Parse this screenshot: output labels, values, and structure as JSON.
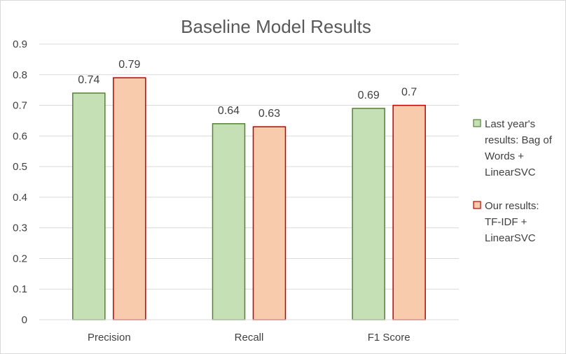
{
  "chart_data": {
    "type": "bar",
    "title": "Baseline Model Results",
    "xlabel": "",
    "ylabel": "",
    "categories": [
      "Precision",
      "Recall",
      "F1 Score"
    ],
    "series": [
      {
        "name_lines": [
          "Last year's",
          "results: Bag of",
          "Words +",
          "LinearSVC"
        ],
        "values": [
          0.74,
          0.64,
          0.69
        ],
        "fill": "#c5e0b4",
        "stroke": "#548235"
      },
      {
        "name_lines": [
          "Our results:",
          "TF-IDF +",
          "LinearSVC"
        ],
        "values": [
          0.79,
          0.63,
          0.7
        ],
        "fill": "#f8cbad",
        "stroke": "#c00000"
      }
    ],
    "data_labels": [
      [
        "0.74",
        "0.64",
        "0.69"
      ],
      [
        "0.79",
        "0.63",
        "0.7"
      ]
    ],
    "ylim": [
      0,
      0.9
    ],
    "yticks": [
      0,
      0.1,
      0.2,
      0.3,
      0.4,
      0.5,
      0.6,
      0.7,
      0.8,
      0.9
    ],
    "ytick_labels": [
      "0",
      "0.1",
      "0.2",
      "0.3",
      "0.4",
      "0.5",
      "0.6",
      "0.7",
      "0.8",
      "0.9"
    ],
    "grid": true,
    "legend": "right"
  }
}
